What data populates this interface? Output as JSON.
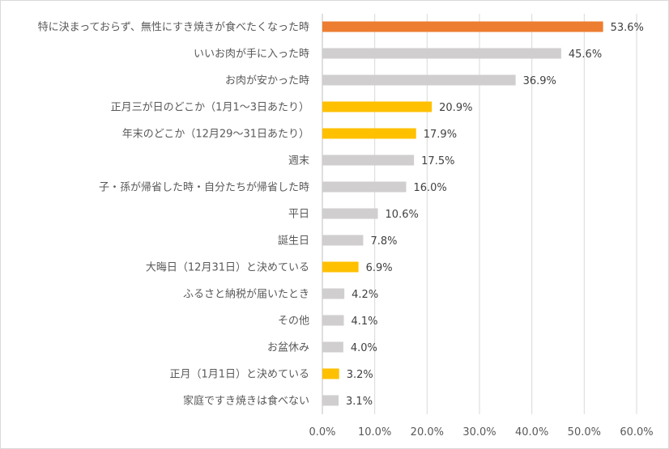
{
  "chart_data": {
    "type": "bar",
    "orientation": "horizontal",
    "categories": [
      "特に決まっておらず、無性にすき焼きが食べたくなった時",
      "いいお肉が手に入った時",
      "お肉が安かった時",
      "正月三が日のどこか（1月1～3日あたり）",
      "年末のどこか（12月29～31日あたり）",
      "週末",
      "子・孫が帰省した時・自分たちが帰省した時",
      "平日",
      "誕生日",
      "大晦日（12月31日）と決めている",
      "ふるさと納税が届いたとき",
      "その他",
      "お盆休み",
      "正月（1月1日）と決めている",
      "家庭ですき焼きは食べない"
    ],
    "values": [
      53.6,
      45.6,
      36.9,
      20.9,
      17.9,
      17.5,
      16.0,
      10.6,
      7.8,
      6.9,
      4.2,
      4.1,
      4.0,
      3.2,
      3.1
    ],
    "value_labels": [
      "53.6%",
      "45.6%",
      "36.9%",
      "20.9%",
      "17.9%",
      "17.5%",
      "16.0%",
      "10.6%",
      "7.8%",
      "6.9%",
      "4.2%",
      "4.1%",
      "4.0%",
      "3.2%",
      "3.1%"
    ],
    "bar_colors": [
      "#ED7D31",
      "#D0CECE",
      "#D0CECE",
      "#FFC000",
      "#FFC000",
      "#D0CECE",
      "#D0CECE",
      "#D0CECE",
      "#D0CECE",
      "#FFC000",
      "#D0CECE",
      "#D0CECE",
      "#D0CECE",
      "#FFC000",
      "#D0CECE"
    ],
    "xlim": [
      0,
      60
    ],
    "x_ticks": [
      "0.0%",
      "10.0%",
      "20.0%",
      "30.0%",
      "40.0%",
      "50.0%",
      "60.0%"
    ],
    "grid": true,
    "gridline_color": "#D9D9D9",
    "legend": "none"
  }
}
